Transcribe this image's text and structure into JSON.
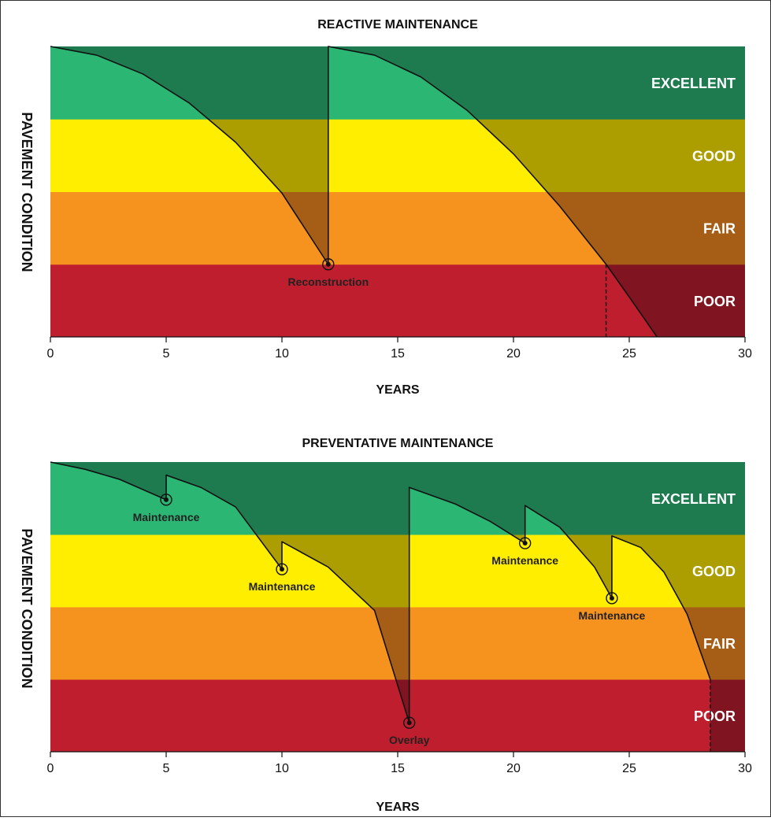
{
  "colors": {
    "excellent": "#1e7b4f",
    "excellent_light": "#2bb673",
    "good": "#ac9e00",
    "good_light": "#ffee00",
    "fair": "#a65e17",
    "fair_light": "#f6921e",
    "poor": "#801420",
    "poor_light": "#be1e2d",
    "curve": "#111111"
  },
  "chart_data": [
    {
      "type": "line",
      "title": "REACTIVE MAINTENANCE",
      "xlabel": "YEARS",
      "ylabel": "PAVEMENT CONDITION",
      "xlim": [
        0,
        30
      ],
      "xticks": [
        0,
        5,
        10,
        15,
        20,
        25,
        30
      ],
      "ylim": [
        0,
        4
      ],
      "bands": [
        "POOR",
        "FAIR",
        "GOOD",
        "EXCELLENT"
      ],
      "curve": [
        {
          "x": 0,
          "y": 4.0
        },
        {
          "x": 2,
          "y": 3.88
        },
        {
          "x": 4,
          "y": 3.62
        },
        {
          "x": 6,
          "y": 3.22
        },
        {
          "x": 8,
          "y": 2.68
        },
        {
          "x": 10,
          "y": 1.98
        },
        {
          "x": 12,
          "y": 1.0
        },
        {
          "x": 12,
          "y": 4.0
        },
        {
          "x": 14,
          "y": 3.88
        },
        {
          "x": 16,
          "y": 3.58
        },
        {
          "x": 18,
          "y": 3.12
        },
        {
          "x": 20,
          "y": 2.52
        },
        {
          "x": 22,
          "y": 1.8
        },
        {
          "x": 24,
          "y": 1.0
        },
        {
          "x": 25,
          "y": 0.55
        },
        {
          "x": 26.2,
          "y": 0.0
        }
      ],
      "events": [
        {
          "x": 12,
          "y": 1.0,
          "label": "Reconstruction",
          "label_pos": "below"
        }
      ],
      "dropline_x": 24,
      "dropline_y": 1.0
    },
    {
      "type": "line",
      "title": "PREVENTATIVE MAINTENANCE",
      "xlabel": "YEARS",
      "ylabel": "PAVEMENT CONDITION",
      "xlim": [
        0,
        30
      ],
      "xticks": [
        0,
        5,
        10,
        15,
        20,
        25,
        30
      ],
      "ylim": [
        0,
        4
      ],
      "bands": [
        "POOR",
        "FAIR",
        "GOOD",
        "EXCELLENT"
      ],
      "curve": [
        {
          "x": 0,
          "y": 4.0
        },
        {
          "x": 1.5,
          "y": 3.9
        },
        {
          "x": 3,
          "y": 3.76
        },
        {
          "x": 5,
          "y": 3.48
        },
        {
          "x": 5,
          "y": 3.82
        },
        {
          "x": 6.5,
          "y": 3.65
        },
        {
          "x": 8,
          "y": 3.38
        },
        {
          "x": 10,
          "y": 2.52
        },
        {
          "x": 10,
          "y": 2.9
        },
        {
          "x": 12,
          "y": 2.55
        },
        {
          "x": 14,
          "y": 1.95
        },
        {
          "x": 15.5,
          "y": 0.4
        },
        {
          "x": 15.5,
          "y": 3.65
        },
        {
          "x": 17.5,
          "y": 3.42
        },
        {
          "x": 19,
          "y": 3.18
        },
        {
          "x": 20.5,
          "y": 2.88
        },
        {
          "x": 20.5,
          "y": 3.4
        },
        {
          "x": 22,
          "y": 3.1
        },
        {
          "x": 23.5,
          "y": 2.55
        },
        {
          "x": 24.25,
          "y": 2.12
        },
        {
          "x": 24.25,
          "y": 2.98
        },
        {
          "x": 25.5,
          "y": 2.82
        },
        {
          "x": 26.5,
          "y": 2.48
        },
        {
          "x": 27.5,
          "y": 1.9
        },
        {
          "x": 28.5,
          "y": 1.0
        }
      ],
      "events": [
        {
          "x": 5,
          "y": 3.48,
          "label": "Maintenance",
          "label_pos": "below"
        },
        {
          "x": 10,
          "y": 2.52,
          "label": "Maintenance",
          "label_pos": "below"
        },
        {
          "x": 15.5,
          "y": 0.4,
          "label": "Overlay",
          "label_pos": "below"
        },
        {
          "x": 20.5,
          "y": 2.88,
          "label": "Maintenance",
          "label_pos": "below"
        },
        {
          "x": 24.25,
          "y": 2.12,
          "label": "Maintenance",
          "label_pos": "below"
        }
      ],
      "dropline_x": 28.5,
      "dropline_y": 1.0
    }
  ]
}
